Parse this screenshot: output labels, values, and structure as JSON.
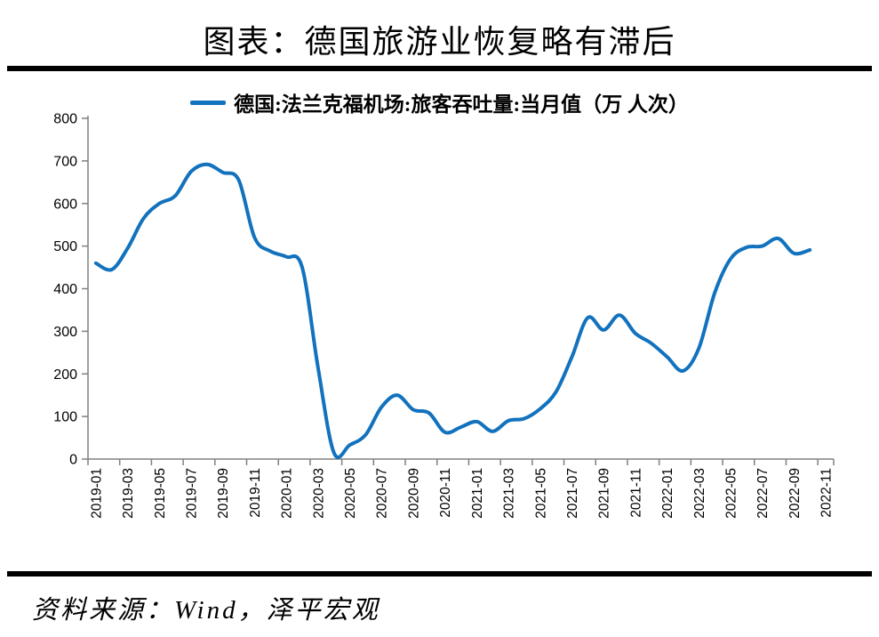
{
  "page": {
    "title": "图表：德国旅游业恢复略有滞后",
    "source": "资料来源：Wind，泽平宏观"
  },
  "legend": {
    "label": "德国:法兰克福机场:旅客吞吐量:当月值（万 人次）"
  },
  "colors": {
    "line": "#1272BD",
    "axis": "#808080",
    "text": "#000000",
    "rule": "#000000"
  },
  "chart_data": {
    "type": "line",
    "title": "图表：德国旅游业恢复略有滞后",
    "series_name": "德国:法兰克福机场:旅客吞吐量:当月值（万 人次）",
    "unit": "万人次",
    "grid": false,
    "legend_position": "top",
    "ylim": [
      0,
      800
    ],
    "y_ticks": [
      0,
      100,
      200,
      300,
      400,
      500,
      600,
      700,
      800
    ],
    "x_tick_labels": [
      "2019-01",
      "2019-03",
      "2019-05",
      "2019-07",
      "2019-09",
      "2019-11",
      "2020-01",
      "2020-03",
      "2020-05",
      "2020-07",
      "2020-09",
      "2020-11",
      "2021-01",
      "2021-03",
      "2021-05",
      "2021-07",
      "2021-09",
      "2021-11",
      "2022-01",
      "2022-03",
      "2022-05",
      "2022-07",
      "2022-09",
      "2022-11"
    ],
    "x": [
      "2019-01",
      "2019-02",
      "2019-03",
      "2019-04",
      "2019-05",
      "2019-06",
      "2019-07",
      "2019-08",
      "2019-09",
      "2019-10",
      "2019-11",
      "2019-12",
      "2020-01",
      "2020-02",
      "2020-03",
      "2020-04",
      "2020-05",
      "2020-06",
      "2020-07",
      "2020-08",
      "2020-09",
      "2020-10",
      "2020-11",
      "2020-12",
      "2021-01",
      "2021-02",
      "2021-03",
      "2021-04",
      "2021-05",
      "2021-06",
      "2021-07",
      "2021-08",
      "2021-09",
      "2021-10",
      "2021-11",
      "2021-12",
      "2022-01",
      "2022-02",
      "2022-03",
      "2022-04",
      "2022-05",
      "2022-06",
      "2022-07",
      "2022-08",
      "2022-09",
      "2022-10"
    ],
    "values": [
      460,
      445,
      495,
      565,
      600,
      618,
      675,
      692,
      673,
      655,
      520,
      488,
      475,
      450,
      215,
      15,
      33,
      57,
      122,
      150,
      116,
      108,
      63,
      75,
      88,
      65,
      90,
      95,
      118,
      158,
      240,
      332,
      303,
      338,
      295,
      272,
      240,
      207,
      260,
      390,
      470,
      497,
      500,
      518,
      483,
      491
    ]
  }
}
